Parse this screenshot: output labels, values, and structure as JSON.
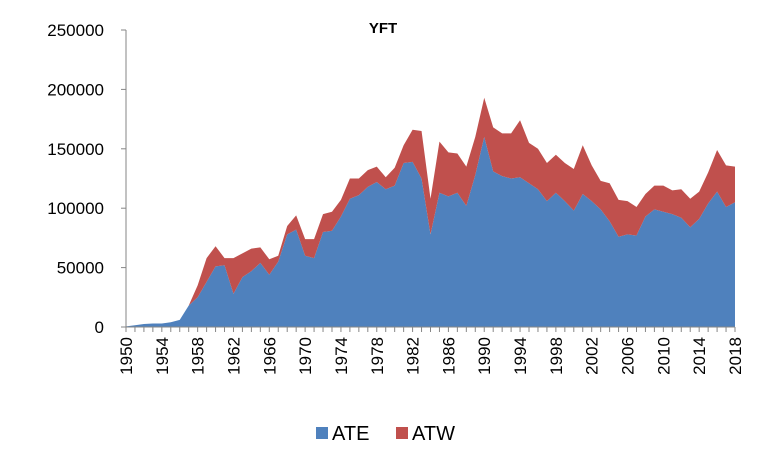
{
  "chart_data": {
    "type": "area",
    "stacked": true,
    "title": "YFT",
    "xlabel": "",
    "ylabel": "",
    "ylim": [
      0,
      250000
    ],
    "yticks": [
      "0",
      "50000",
      "100000",
      "150000",
      "200000",
      "250000"
    ],
    "xticks": [
      "1950",
      "1954",
      "1958",
      "1962",
      "1966",
      "1970",
      "1974",
      "1978",
      "1982",
      "1986",
      "1990",
      "1994",
      "1998",
      "2002",
      "2006",
      "2010",
      "2014",
      "2018"
    ],
    "grid": false,
    "legend_position": "bottom",
    "x": [
      1950,
      1951,
      1952,
      1953,
      1954,
      1955,
      1956,
      1957,
      1958,
      1959,
      1960,
      1961,
      1962,
      1963,
      1964,
      1965,
      1966,
      1967,
      1968,
      1969,
      1970,
      1971,
      1972,
      1973,
      1974,
      1975,
      1976,
      1977,
      1978,
      1979,
      1980,
      1981,
      1982,
      1983,
      1984,
      1985,
      1986,
      1987,
      1988,
      1989,
      1990,
      1991,
      1992,
      1993,
      1994,
      1995,
      1996,
      1997,
      1998,
      1999,
      2000,
      2001,
      2002,
      2003,
      2004,
      2005,
      2006,
      2007,
      2008,
      2009,
      2010,
      2011,
      2012,
      2013,
      2014,
      2015,
      2016,
      2017,
      2018
    ],
    "series": [
      {
        "name": "ATE",
        "color": "#4f81bd",
        "values": [
          500,
          1500,
          2500,
          3000,
          3000,
          4000,
          6000,
          18000,
          25000,
          38000,
          51000,
          52000,
          28000,
          42000,
          47000,
          54000,
          44000,
          55000,
          78000,
          82000,
          60000,
          58000,
          80000,
          81000,
          93000,
          108000,
          111000,
          118000,
          122000,
          116000,
          119000,
          138000,
          139000,
          125000,
          78000,
          113000,
          110000,
          113000,
          102000,
          128000,
          160000,
          131000,
          127000,
          125000,
          126000,
          121000,
          116000,
          106000,
          113000,
          106000,
          98000,
          112000,
          106000,
          99000,
          89000,
          76000,
          78000,
          77000,
          93000,
          99000,
          97000,
          95000,
          92000,
          84000,
          91000,
          104000,
          114000,
          101000,
          105000
        ]
      },
      {
        "name": "ATW",
        "color": "#c0504d",
        "values": [
          0,
          0,
          0,
          0,
          0,
          0,
          0,
          0,
          10000,
          20000,
          17000,
          6000,
          30000,
          20000,
          19000,
          13000,
          13000,
          5000,
          7000,
          12000,
          14000,
          16000,
          15000,
          16000,
          14000,
          17000,
          14000,
          14000,
          13000,
          10000,
          15000,
          15000,
          27000,
          40000,
          30000,
          43000,
          37000,
          33000,
          33000,
          32000,
          33000,
          37000,
          36000,
          38000,
          48000,
          34000,
          34000,
          32000,
          32000,
          32000,
          35000,
          41000,
          30000,
          24000,
          32000,
          31000,
          28000,
          24000,
          19000,
          20000,
          22000,
          20000,
          24000,
          24000,
          23000,
          26000,
          35000,
          35000,
          30000
        ]
      }
    ]
  }
}
